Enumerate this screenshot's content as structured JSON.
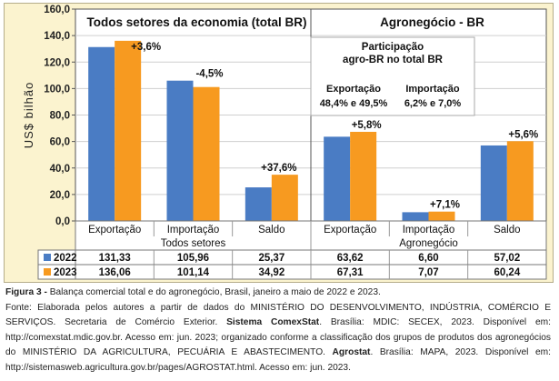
{
  "chart_data": {
    "type": "bar",
    "ylabel": "US$ bilhão",
    "ylim": [
      0,
      160
    ],
    "yticks": [
      "0,0",
      "20,0",
      "40,0",
      "60,0",
      "80,0",
      "100,0",
      "120,0",
      "140,0",
      "160,0"
    ],
    "groups": [
      {
        "label": "Todos setores",
        "title": "Todos setores da economia (total BR)"
      },
      {
        "label": "Agronegócio",
        "title": "Agronegócio - BR"
      }
    ],
    "categories": [
      "Exportação",
      "Importação",
      "Saldo",
      "Exportação",
      "Importação",
      "Saldo"
    ],
    "series": [
      {
        "name": "2022",
        "color": "#4a7cc4",
        "values": [
          131.33,
          105.96,
          25.37,
          63.62,
          6.6,
          57.02
        ],
        "labels": [
          "131,33",
          "105,96",
          "25,37",
          "63,62",
          "6,60",
          "57,02"
        ]
      },
      {
        "name": "2023",
        "color": "#f79a20",
        "values": [
          136.06,
          101.14,
          34.92,
          67.31,
          7.07,
          60.24
        ],
        "labels": [
          "136,06",
          "101,14",
          "34,92",
          "67,31",
          "7,07",
          "60,24"
        ]
      }
    ],
    "annotations": [
      "+3,6%",
      "-4,5%",
      "+37,6%",
      "+5,8%",
      "+7,1%",
      "+5,6%"
    ],
    "infobox": {
      "title_line1": "Participação",
      "title_line2": "agro-BR no total BR",
      "col1_label": "Exportação",
      "col1_value": "48,4% e 49,5%",
      "col2_label": "Importação",
      "col2_value": "6,2% e 7,0%"
    }
  },
  "caption": {
    "figure_label": "Figura 3 -",
    "figure_text": " Balança comercial total e do agronegócio, Brasil, janeiro a maio de 2022 e 2023.",
    "source_part1": "Fonte: Elaborada pelos autores a partir de dados do MINISTÉRIO DO DESENVOLVIMENTO, INDÚSTRIA, COMÉRCIO E SERVIÇOS. Secretaria de Comércio Exterior. ",
    "source_bold1": "Sistema ComexStat",
    "source_part2": ". Brasília: MDIC: SECEX, 2023. Disponível em: http://comexstat.mdic.gov.br. Acesso em: jun. 2023; organizado conforme a classificação dos grupos de produtos dos agronegócios do MINISTÉRIO DA AGRICULTURA, PECUÁRIA E ABASTECIMENTO. ",
    "source_bold2": "Agrostat",
    "source_part3": ". Brasília: MAPA, 2023. Disponível em: http://sistemasweb.agricultura.gov.br/pages/AGROSTAT.html. Acesso em: jun. 2023."
  }
}
